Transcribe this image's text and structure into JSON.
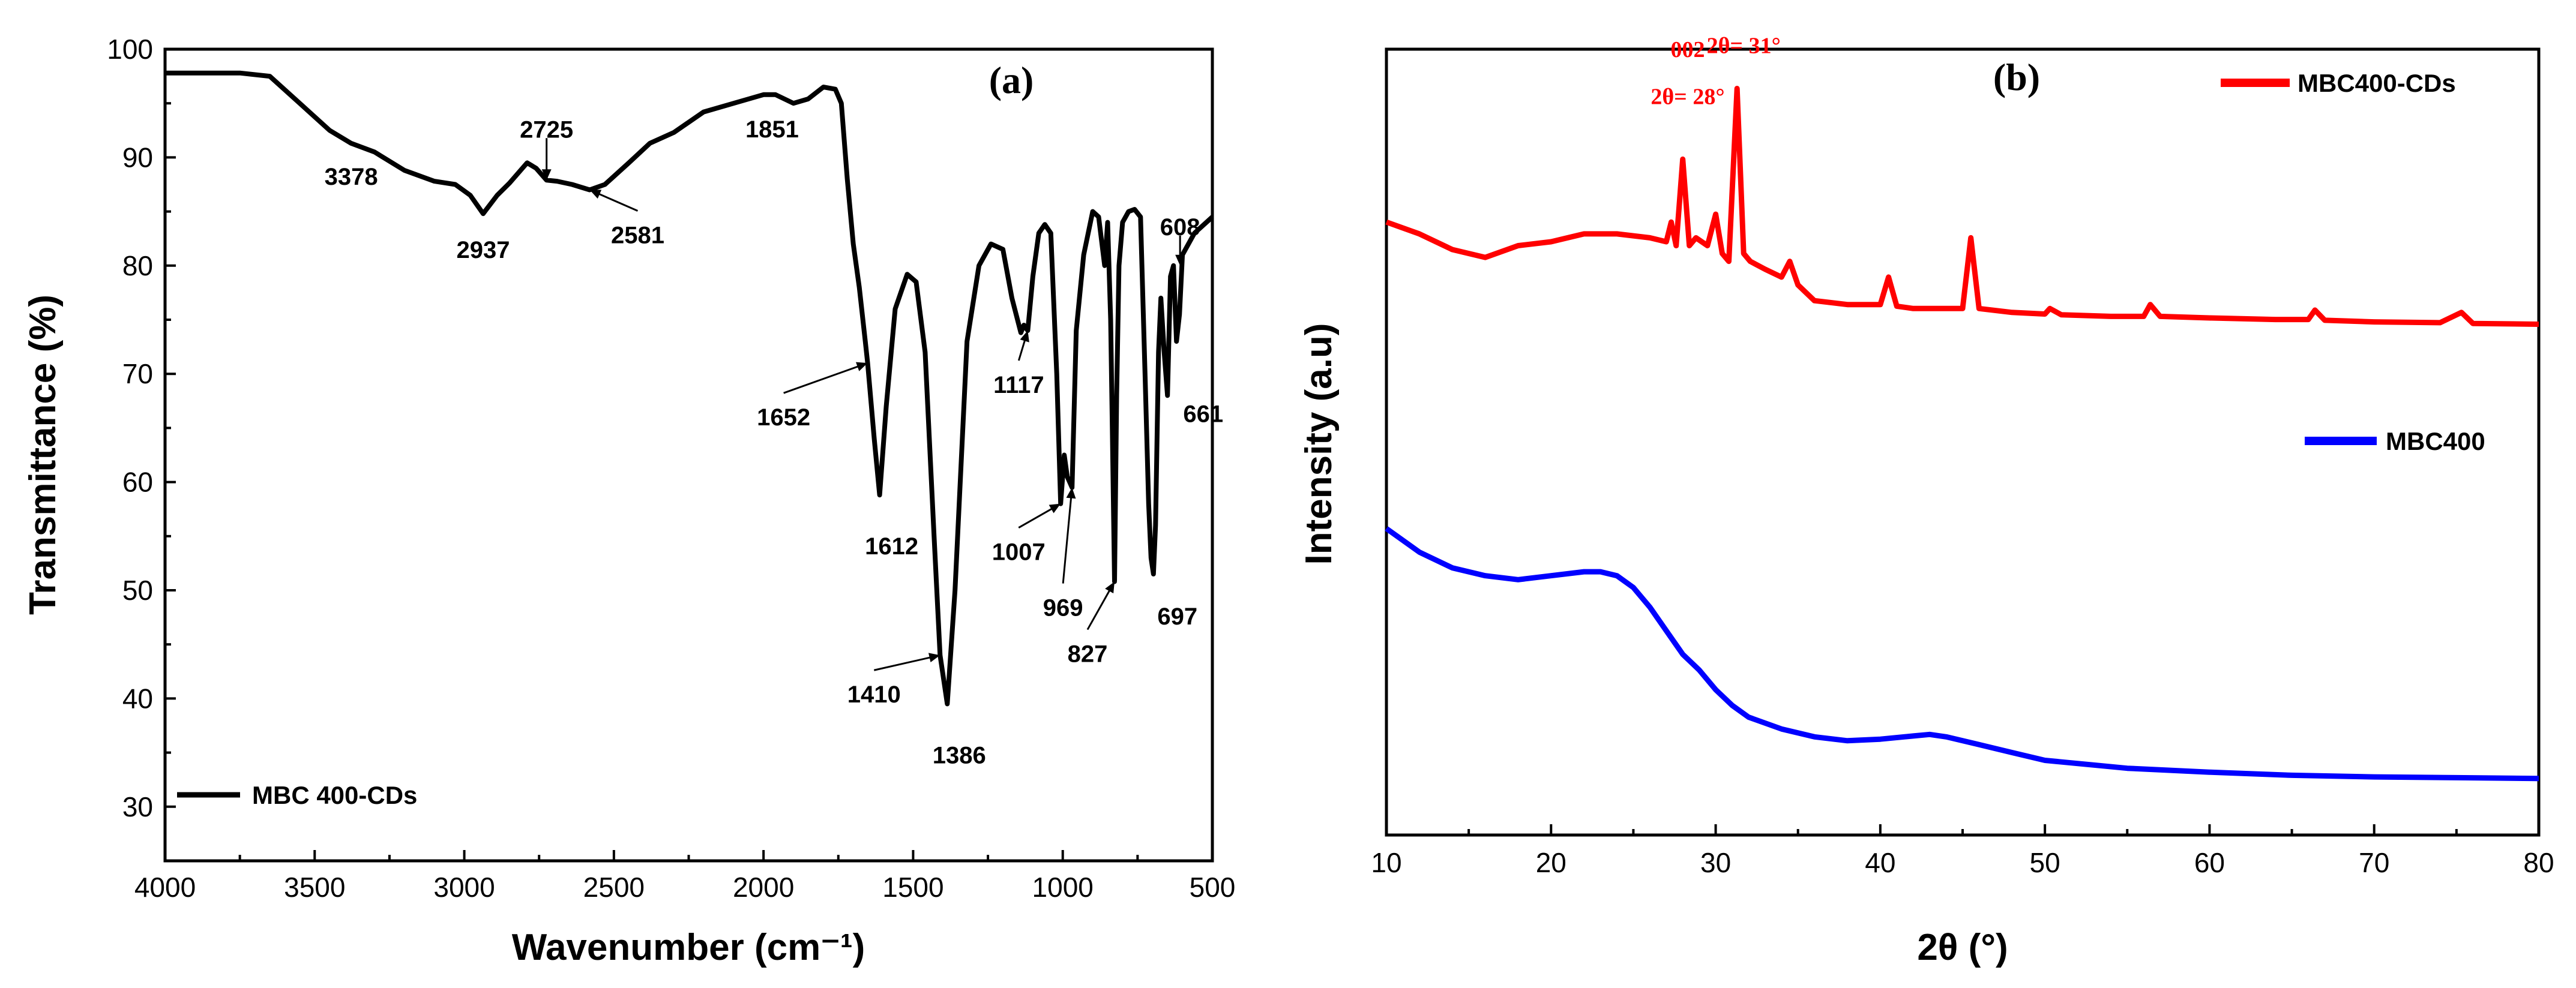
{
  "chart_data": [
    {
      "type": "line",
      "panel": "(a)",
      "xlabel": "Wavenumber (cm⁻¹)",
      "ylabel": "Transmittance (%)",
      "xlim": [
        4000,
        500
      ],
      "ylim": [
        25,
        100
      ],
      "x_reversed": true,
      "xticks": [
        4000,
        3500,
        3000,
        2500,
        2000,
        1500,
        1000,
        500
      ],
      "yticks": [
        30,
        40,
        50,
        60,
        70,
        80,
        90,
        100
      ],
      "legend": {
        "position": "bottom-left",
        "label": "MBC 400-CDs",
        "color": "#000000"
      },
      "series": [
        {
          "name": "MBC 400-CDs",
          "color": "#000000",
          "x": [
            4000,
            3900,
            3750,
            3650,
            3550,
            3450,
            3378,
            3300,
            3200,
            3100,
            3030,
            2980,
            2937,
            2890,
            2850,
            2790,
            2760,
            2725,
            2690,
            2640,
            2581,
            2530,
            2450,
            2380,
            2300,
            2200,
            2100,
            2000,
            1960,
            1900,
            1851,
            1800,
            1760,
            1740,
            1720,
            1700,
            1680,
            1660,
            1652,
            1630,
            1612,
            1590,
            1560,
            1520,
            1490,
            1460,
            1430,
            1410,
            1386,
            1360,
            1320,
            1280,
            1240,
            1200,
            1170,
            1140,
            1130,
            1117,
            1100,
            1080,
            1060,
            1040,
            1020,
            1007,
            995,
            985,
            969,
            955,
            930,
            900,
            880,
            860,
            850,
            840,
            835,
            827,
            820,
            812,
            800,
            780,
            760,
            740,
            725,
            713,
            705,
            697,
            690,
            680,
            672,
            661,
            650,
            640,
            630,
            620,
            610,
            600,
            560,
            500
          ],
          "y": [
            97.8,
            97.8,
            97.8,
            97.5,
            95.0,
            92.5,
            91.3,
            90.5,
            88.8,
            87.8,
            87.5,
            86.5,
            84.8,
            86.5,
            87.6,
            89.5,
            89.0,
            87.9,
            87.8,
            87.5,
            87.0,
            87.5,
            89.5,
            91.3,
            92.3,
            94.2,
            95.0,
            95.8,
            95.8,
            95.0,
            95.4,
            96.5,
            96.3,
            95.0,
            88.0,
            82.0,
            78.0,
            73.0,
            71.0,
            64.0,
            58.8,
            67.0,
            76.0,
            79.2,
            78.5,
            72.0,
            55.0,
            44.0,
            39.5,
            50.0,
            73.0,
            80.0,
            82.0,
            81.5,
            77.0,
            73.8,
            74.5,
            74.0,
            79.0,
            83.0,
            83.8,
            83.0,
            70.0,
            58.0,
            62.5,
            60.5,
            59.5,
            74.0,
            81.0,
            85.0,
            84.5,
            80.0,
            84.0,
            75.0,
            66.0,
            50.8,
            68.0,
            80.0,
            84.0,
            85.0,
            85.2,
            84.5,
            70.0,
            58.0,
            53.0,
            51.5,
            56.0,
            72.0,
            77.0,
            72.0,
            68.0,
            79.0,
            80.0,
            73.0,
            75.5,
            81.0,
            83.0,
            84.5
          ]
        }
      ],
      "annotations": [
        {
          "text": "3378",
          "x": 3378,
          "y": 91.3
        },
        {
          "text": "2937",
          "x": 2937,
          "y": 84.8
        },
        {
          "text": "2725",
          "x": 2725,
          "y": 87.9
        },
        {
          "text": "2581",
          "x": 2581,
          "y": 87.0
        },
        {
          "text": "1851",
          "x": 1851,
          "y": 95.4
        },
        {
          "text": "1652",
          "x": 1652,
          "y": 71.0
        },
        {
          "text": "1612",
          "x": 1612,
          "y": 58.8
        },
        {
          "text": "1410",
          "x": 1410,
          "y": 44.0
        },
        {
          "text": "1386",
          "x": 1386,
          "y": 39.5
        },
        {
          "text": "1117",
          "x": 1117,
          "y": 74.0
        },
        {
          "text": "1007",
          "x": 1007,
          "y": 58.0
        },
        {
          "text": "969",
          "x": 969,
          "y": 59.5
        },
        {
          "text": "827",
          "x": 827,
          "y": 50.8
        },
        {
          "text": "697",
          "x": 697,
          "y": 51.5
        },
        {
          "text": "661",
          "x": 661,
          "y": 68.0
        },
        {
          "text": "608",
          "x": 608,
          "y": 80.0
        }
      ]
    },
    {
      "type": "line",
      "panel": "(b)",
      "xlabel": "2θ (°)",
      "ylabel": "Intensity (a.u)",
      "xlim": [
        10,
        80
      ],
      "ylim": [
        0,
        100
      ],
      "xticks": [
        10,
        20,
        30,
        40,
        50,
        60,
        70,
        80
      ],
      "yticks": [],
      "legend": [
        {
          "label": "MBC400-CDs",
          "color": "#ff0000"
        },
        {
          "label": "MBC400",
          "color": "#0000ff"
        }
      ],
      "series": [
        {
          "name": "MBC400-CDs",
          "color": "#ff0000",
          "x": [
            10,
            12,
            14,
            16,
            18,
            20,
            22,
            24,
            26,
            27,
            27.3,
            27.6,
            28,
            28.4,
            28.8,
            29.5,
            30,
            30.4,
            30.8,
            31.3,
            31.7,
            32.1,
            33,
            34,
            34.5,
            35,
            36,
            38,
            40,
            40.5,
            41,
            42,
            44,
            45,
            45.5,
            46,
            48,
            50,
            50.3,
            51,
            54,
            56,
            56.4,
            57,
            60,
            64,
            66,
            66.4,
            67,
            70,
            74,
            75.3,
            76,
            80
          ],
          "y": [
            78,
            76.5,
            74.5,
            73.5,
            75,
            75.5,
            76.5,
            76.5,
            76,
            75.5,
            78,
            75,
            86,
            75,
            76,
            75,
            79,
            74,
            73,
            95,
            74,
            73,
            72,
            71,
            73,
            70,
            68,
            67.5,
            67.5,
            71,
            67.3,
            67,
            67,
            67,
            76,
            67,
            66.5,
            66.3,
            67,
            66.2,
            66,
            66,
            67.5,
            66,
            65.8,
            65.6,
            65.6,
            66.8,
            65.5,
            65.3,
            65.2,
            66.5,
            65.1,
            65
          ]
        },
        {
          "name": "MBC400",
          "color": "#0000ff",
          "x": [
            10,
            12,
            14,
            16,
            18,
            20,
            22,
            23,
            24,
            25,
            26,
            27,
            28,
            29,
            30,
            31,
            32,
            34,
            36,
            38,
            40,
            42,
            43,
            44,
            46,
            48,
            50,
            55,
            60,
            65,
            70,
            75,
            80
          ],
          "y": [
            39,
            36,
            34,
            33,
            32.5,
            33,
            33.5,
            33.5,
            33,
            31.5,
            29,
            26,
            23,
            21,
            18.5,
            16.5,
            15,
            13.5,
            12.5,
            12,
            12.2,
            12.6,
            12.8,
            12.5,
            11.5,
            10.5,
            9.5,
            8.5,
            8,
            7.6,
            7.4,
            7.3,
            7.2
          ]
        }
      ],
      "annotations": [
        {
          "text": "002",
          "x": 28.3,
          "y": 99
        },
        {
          "text": "2θ= 28°",
          "x": 28.3,
          "y": 93
        },
        {
          "text": "2θ= 31°",
          "x": 31.7,
          "y": 99.5
        }
      ]
    }
  ]
}
